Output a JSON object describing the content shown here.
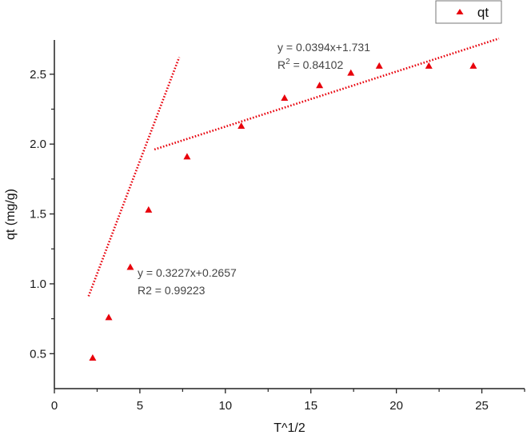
{
  "chart_data": {
    "type": "scatter",
    "title": "",
    "xlabel": "T^1/2",
    "ylabel": "qt (mg/g)",
    "xlim": [
      0,
      27.5
    ],
    "ylim": [
      0.25,
      2.745
    ],
    "x_ticks": [
      0,
      5,
      10,
      15,
      20,
      25
    ],
    "x_tick_labels": [
      "0",
      "5",
      "10",
      "15",
      "20",
      "25"
    ],
    "y_ticks": [
      0.5,
      1.0,
      1.5,
      2.0,
      2.5
    ],
    "y_tick_labels": [
      "0.5",
      "1.0",
      "1.5",
      "2.0",
      "2.5"
    ],
    "grid": false,
    "legend_position": "top-right",
    "series": [
      {
        "name": "qt",
        "marker": "triangle",
        "color": "#e8000b",
        "x": [
          2.24,
          3.18,
          4.44,
          5.51,
          7.76,
          10.93,
          13.46,
          15.51,
          17.34,
          19.0,
          21.9,
          24.5
        ],
        "y": [
          0.47,
          0.76,
          1.12,
          1.53,
          1.91,
          2.13,
          2.33,
          2.42,
          2.51,
          2.56,
          2.56,
          2.56
        ]
      }
    ],
    "fits": [
      {
        "name": "fit-stage-1",
        "slope": 0.3227,
        "intercept": 0.2657,
        "x_range": [
          2.0,
          7.3
        ],
        "equation": "y = 0.3227x+0.2657",
        "r2_label": "R2 = 0.99223",
        "color": "#e8000b",
        "style": "dotted"
      },
      {
        "name": "fit-stage-2",
        "slope": 0.0394,
        "intercept": 1.731,
        "x_range": [
          5.85,
          26.0
        ],
        "equation": "y = 0.0394x+1.731",
        "r2_prefix": "R",
        "r2_sup": "2",
        "r2_suffix": " = 0.84102",
        "color": "#e8000b",
        "style": "dotted"
      }
    ],
    "annotations": [
      "y = 0.0394x+1.731",
      "R² = 0.84102",
      "y = 0.3227x+0.2657",
      "R2 = 0.99223"
    ]
  },
  "legend": {
    "label": "qt"
  }
}
